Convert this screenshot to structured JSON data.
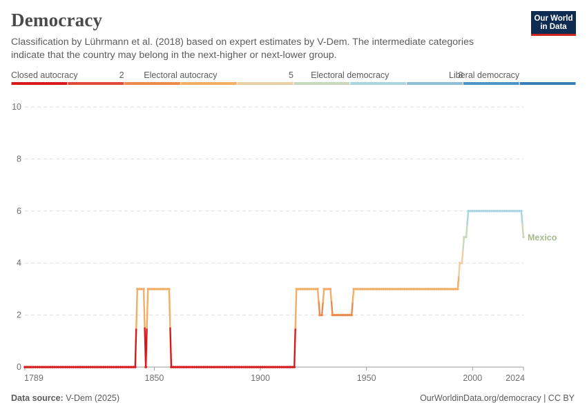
{
  "header": {
    "title": "Democracy",
    "subtitle": "Classification by Lührmann et al. (2018) based on expert estimates by V-Dem. The intermediate categories indicate that the country may belong in the next-higher or next-lower group.",
    "logo_line1": "Our World",
    "logo_line2": "in Data"
  },
  "footer": {
    "source_label": "Data source:",
    "source_value": "V-Dem (2025)",
    "link_text": "OurWorldinData.org/democracy | CC BY"
  },
  "legend": {
    "labels": [
      {
        "text": "Closed autocracy",
        "bin": 0,
        "anchor": "start"
      },
      {
        "text": "2",
        "bin": 2,
        "anchor": "end"
      },
      {
        "text": "Electoral autocracy",
        "bin": 3,
        "anchor": "middle"
      },
      {
        "text": "5",
        "bin": 5,
        "anchor": "end"
      },
      {
        "text": "Electoral democracy",
        "bin": 6,
        "anchor": "middle"
      },
      {
        "text": "8",
        "bin": 8,
        "anchor": "end"
      },
      {
        "text": "Liberal democracy",
        "bin": 9,
        "anchor": "end"
      }
    ],
    "bins": [
      {
        "from": 0,
        "to": 1,
        "color": "#d7191c"
      },
      {
        "from": 1,
        "to": 2,
        "color": "#e0483a"
      },
      {
        "from": 2,
        "to": 3,
        "color": "#ec8a4e"
      },
      {
        "from": 3,
        "to": 4,
        "color": "#f2ad67"
      },
      {
        "from": 4,
        "to": 5,
        "color": "#ebcfa4"
      },
      {
        "from": 5,
        "to": 6,
        "color": "#c9d8bc"
      },
      {
        "from": 6,
        "to": 7,
        "color": "#a9d5e0"
      },
      {
        "from": 7,
        "to": 8,
        "color": "#8fbfd8"
      },
      {
        "from": 8,
        "to": 9,
        "color": "#4b94c3"
      },
      {
        "from": 9,
        "to": 10,
        "color": "#3a7db5"
      }
    ]
  },
  "chart_data": {
    "type": "line",
    "title": "Democracy",
    "xlabel": "",
    "ylabel": "",
    "xlim": [
      1789,
      2024
    ],
    "ylim": [
      0,
      10
    ],
    "x_ticks": [
      1789,
      1850,
      1900,
      1950,
      2000,
      2024
    ],
    "y_ticks": [
      0,
      2,
      4,
      6,
      8,
      10
    ],
    "grid": true,
    "series": [
      {
        "name": "Mexico",
        "color": "#a9b98f",
        "segments": [
          {
            "x_start": 1789,
            "x_end": 1841,
            "value": 0
          },
          {
            "x_start": 1842,
            "x_end": 1845,
            "value": 3
          },
          {
            "x_start": 1846,
            "x_end": 1846,
            "value": 0
          },
          {
            "x_start": 1847,
            "x_end": 1857,
            "value": 3
          },
          {
            "x_start": 1858,
            "x_end": 1916,
            "value": 0
          },
          {
            "x_start": 1917,
            "x_end": 1927,
            "value": 3
          },
          {
            "x_start": 1928,
            "x_end": 1929,
            "value": 2
          },
          {
            "x_start": 1930,
            "x_end": 1933,
            "value": 3
          },
          {
            "x_start": 1934,
            "x_end": 1943,
            "value": 2
          },
          {
            "x_start": 1944,
            "x_end": 1993,
            "value": 3
          },
          {
            "x_start": 1994,
            "x_end": 1995,
            "value": 4
          },
          {
            "x_start": 1996,
            "x_end": 1997,
            "value": 5
          },
          {
            "x_start": 1998,
            "x_end": 2023,
            "value": 6
          },
          {
            "x_start": 2024,
            "x_end": 2024,
            "value": 5
          }
        ]
      }
    ]
  }
}
